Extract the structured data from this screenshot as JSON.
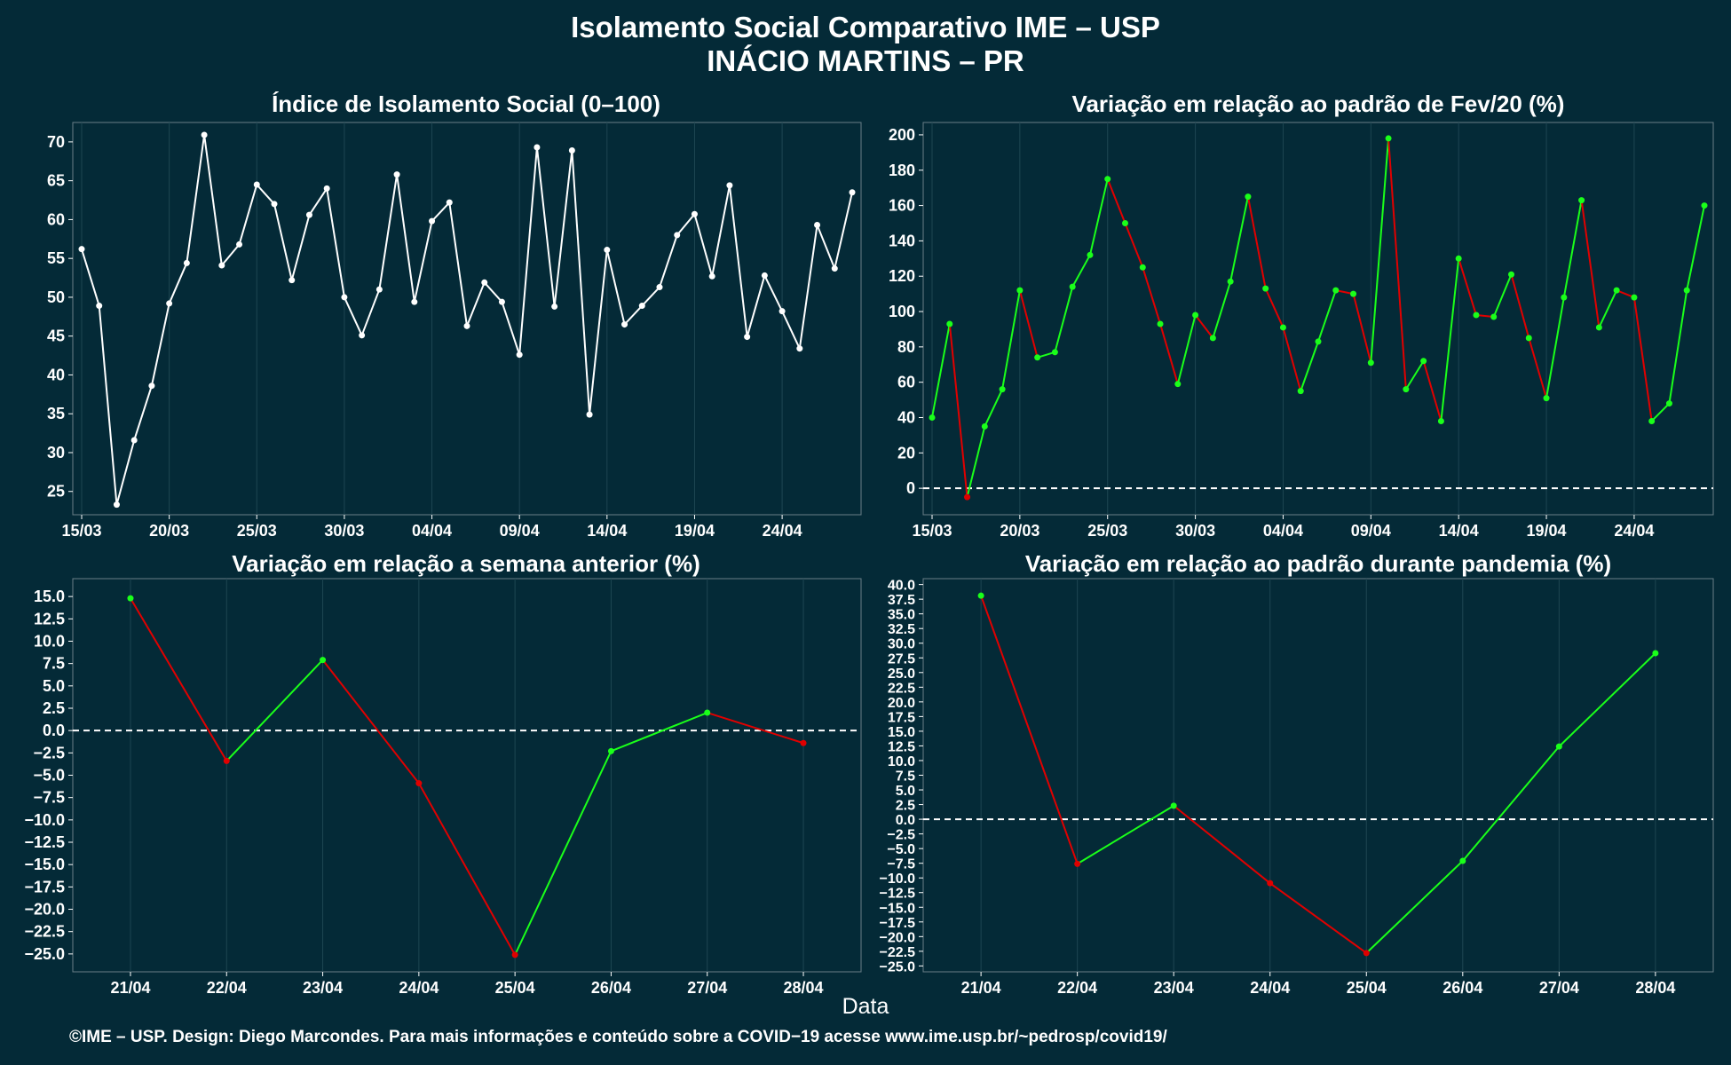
{
  "title_line1": "Isolamento Social Comparativo IME – USP",
  "title_line2": "INÁCIO MARTINS – PR",
  "x_axis_label": "Data",
  "footer": "©IME – USP. Design: Diego Marcondes. Para mais informações e conteúdo sobre a COVID−19 acesse www.ime.usp.br/~pedrosp/covid19/",
  "colors": {
    "background": "#042a37",
    "white": "#ffffff",
    "positive": "#1aff1a",
    "negative": "#e00000"
  },
  "chart_data": [
    {
      "type": "line",
      "title": "Índice de Isolamento Social (0–100)",
      "x_tick_labels": [
        "15/03",
        "20/03",
        "25/03",
        "30/03",
        "04/04",
        "09/04",
        "14/04",
        "19/04",
        "24/04"
      ],
      "y_tick_labels": [
        "25",
        "30",
        "35",
        "40",
        "45",
        "50",
        "55",
        "60",
        "65",
        "70"
      ],
      "ylim": [
        22,
        72.5
      ],
      "x_start": "15/03",
      "y": [
        56.2,
        48.9,
        23.3,
        31.6,
        38.6,
        49.2,
        54.4,
        70.9,
        54.1,
        56.8,
        64.5,
        62.0,
        52.2,
        60.6,
        64.0,
        50.0,
        45.1,
        51.0,
        65.8,
        49.4,
        59.8,
        62.2,
        46.3,
        51.9,
        49.4,
        42.6,
        69.3,
        48.8,
        68.9,
        34.9,
        56.1,
        46.5,
        48.9,
        51.3,
        58.0,
        60.7,
        52.7,
        64.4,
        44.9,
        52.8,
        48.2,
        43.4,
        59.3,
        53.7,
        63.5
      ],
      "grid": true
    },
    {
      "type": "line",
      "title": "Variação em relação ao padrão de Fev/20 (%)",
      "x_tick_labels": [
        "15/03",
        "20/03",
        "25/03",
        "30/03",
        "04/04",
        "09/04",
        "14/04",
        "19/04",
        "24/04"
      ],
      "y_tick_labels": [
        "0",
        "20",
        "40",
        "60",
        "80",
        "100",
        "120",
        "140",
        "160",
        "180",
        "200"
      ],
      "ylim": [
        -15,
        207
      ],
      "x_start": "15/03",
      "y": [
        40,
        93,
        -5,
        35,
        56,
        112,
        74,
        77,
        114,
        132,
        175,
        150,
        125,
        93,
        59,
        98,
        85,
        117,
        165,
        113,
        91,
        55,
        83,
        112,
        110,
        71,
        198,
        56,
        72,
        38,
        130,
        98,
        97,
        121,
        85,
        51,
        108,
        163,
        91,
        112,
        108,
        38,
        48,
        112,
        160
      ],
      "reference_line": 0,
      "grid": true
    },
    {
      "type": "line",
      "title": "Variação em relação a semana anterior (%)",
      "categories": [
        "21/04",
        "22/04",
        "23/04",
        "24/04",
        "25/04",
        "26/04",
        "27/04",
        "28/04"
      ],
      "y_tick_labels": [
        "15.0",
        "12.5",
        "10.0",
        "7.5",
        "5.0",
        "2.5",
        "0.0",
        "−2.5",
        "−5.0",
        "−7.5",
        "−10.0",
        "−12.5",
        "−15.0",
        "−17.5",
        "−20.0",
        "−22.5",
        "−25.0"
      ],
      "ylim": [
        -27,
        17
      ],
      "values": [
        14.8,
        -3.4,
        7.9,
        -5.9,
        -25.1,
        -2.3,
        2.0,
        -1.4
      ],
      "reference_line": 0,
      "grid": true
    },
    {
      "type": "line",
      "title": "Variação em relação ao padrão durante pandemia (%)",
      "categories": [
        "21/04",
        "22/04",
        "23/04",
        "24/04",
        "25/04",
        "26/04",
        "27/04",
        "28/04"
      ],
      "y_tick_labels": [
        "40.0",
        "37.5",
        "35.0",
        "32.5",
        "30.0",
        "27.5",
        "25.0",
        "22.5",
        "20.0",
        "17.5",
        "15.0",
        "12.5",
        "10.0",
        "7.5",
        "5.0",
        "2.5",
        "0.0",
        "−2.5",
        "−5.0",
        "−7.5",
        "−10.0",
        "−12.5",
        "−15.0",
        "−17.5",
        "−20.0",
        "−22.5",
        "−25.0"
      ],
      "ylim": [
        -26,
        41
      ],
      "values": [
        38.1,
        -7.6,
        2.3,
        -10.9,
        -22.8,
        -7.1,
        12.4,
        28.3
      ],
      "reference_line": 0,
      "grid": true
    }
  ]
}
